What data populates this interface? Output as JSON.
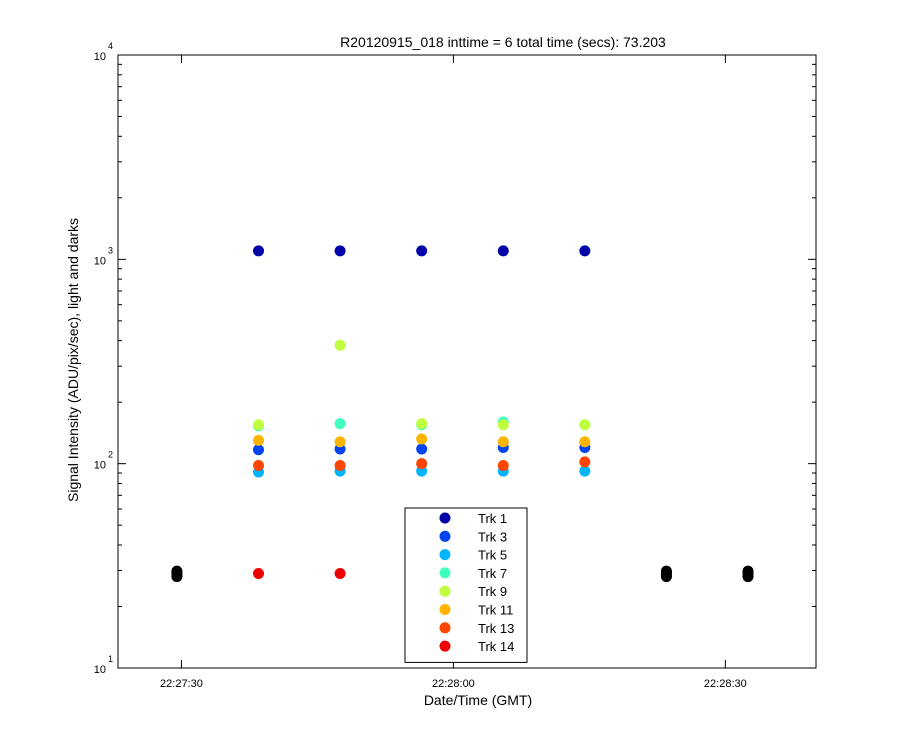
{
  "chart_data": {
    "type": "scatter",
    "title": "R20120915_018 inttime = 6 total time (secs): 73.203",
    "xlabel": "Date/Time (GMT)",
    "ylabel": "Signal Intensity (ADU/pix/sec), light and darks",
    "y_scale": "log",
    "ylim": [
      10,
      10000
    ],
    "xlim": [
      "22:27:23",
      "22:28:40"
    ],
    "x_ticks": [
      "22:27:30",
      "22:28:00",
      "22:28:30"
    ],
    "y_ticks": [
      {
        "base": "10",
        "exp": "1"
      },
      {
        "base": "10",
        "exp": "2"
      },
      {
        "base": "10",
        "exp": "3"
      },
      {
        "base": "10",
        "exp": "4"
      }
    ],
    "grid": false,
    "legend_position": "bottom-center",
    "series": [
      {
        "name": "Trk 1",
        "color": "#0000aa",
        "points": [
          [
            "22:27:38.5",
            1100
          ],
          [
            "22:27:47.5",
            1100
          ],
          [
            "22:27:56.5",
            1100
          ],
          [
            "22:28:05.5",
            1100
          ],
          [
            "22:28:14.5",
            1100
          ]
        ]
      },
      {
        "name": "Trk 3",
        "color": "#0044ee",
        "points": [
          [
            "22:27:38.5",
            117
          ],
          [
            "22:27:47.5",
            118
          ],
          [
            "22:27:56.5",
            118
          ],
          [
            "22:28:05.5",
            120
          ],
          [
            "22:28:14.5",
            120
          ]
        ]
      },
      {
        "name": "Trk 5",
        "color": "#00b4ff",
        "points": [
          [
            "22:27:38.5",
            91
          ],
          [
            "22:27:47.5",
            92
          ],
          [
            "22:27:56.5",
            92
          ],
          [
            "22:28:05.5",
            92
          ],
          [
            "22:28:14.5",
            92
          ]
        ]
      },
      {
        "name": "Trk 7",
        "color": "#40ffc0",
        "points": [
          [
            "22:27:38.5",
            153
          ],
          [
            "22:27:47.5",
            157
          ],
          [
            "22:27:56.5",
            155
          ],
          [
            "22:28:05.5",
            160
          ],
          [
            "22:28:14.5",
            155
          ]
        ]
      },
      {
        "name": "Trk 9",
        "color": "#c0ff40",
        "points": [
          [
            "22:27:38.5",
            155
          ],
          [
            "22:27:47.5",
            380
          ],
          [
            "22:27:56.5",
            157
          ],
          [
            "22:28:05.5",
            155
          ],
          [
            "22:28:14.5",
            155
          ]
        ]
      },
      {
        "name": "Trk 11",
        "color": "#ffb400",
        "points": [
          [
            "22:27:38.5",
            130
          ],
          [
            "22:27:47.5",
            128
          ],
          [
            "22:27:56.5",
            132
          ],
          [
            "22:28:05.5",
            128
          ],
          [
            "22:28:14.5",
            128
          ]
        ]
      },
      {
        "name": "Trk 13",
        "color": "#ff4400",
        "points": [
          [
            "22:27:38.5",
            98
          ],
          [
            "22:27:47.5",
            98
          ],
          [
            "22:27:56.5",
            100
          ],
          [
            "22:28:05.5",
            98
          ],
          [
            "22:28:14.5",
            102
          ]
        ]
      },
      {
        "name": "Trk 14",
        "color": "#ee0000",
        "points": [
          [
            "22:27:38.5",
            29
          ],
          [
            "22:27:47.5",
            29
          ],
          [
            "22:27:56.5",
            29
          ]
        ]
      },
      {
        "name": "",
        "color": "#000000",
        "points": [
          [
            "22:27:20.5",
            28
          ],
          [
            "22:27:20.5",
            28.6
          ],
          [
            "22:27:20.5",
            29.2
          ],
          [
            "22:27:20.5",
            29.8
          ],
          [
            "22:27:29.5",
            28
          ],
          [
            "22:27:29.5",
            28.6
          ],
          [
            "22:27:29.5",
            29.2
          ],
          [
            "22:27:29.5",
            29.8
          ],
          [
            "22:28:23.5",
            28
          ],
          [
            "22:28:23.5",
            28.6
          ],
          [
            "22:28:23.5",
            29.2
          ],
          [
            "22:28:23.5",
            29.8
          ],
          [
            "22:28:32.5",
            28
          ],
          [
            "22:28:32.5",
            28.6
          ],
          [
            "22:28:32.5",
            29.2
          ],
          [
            "22:28:32.5",
            29.8
          ]
        ]
      }
    ]
  }
}
